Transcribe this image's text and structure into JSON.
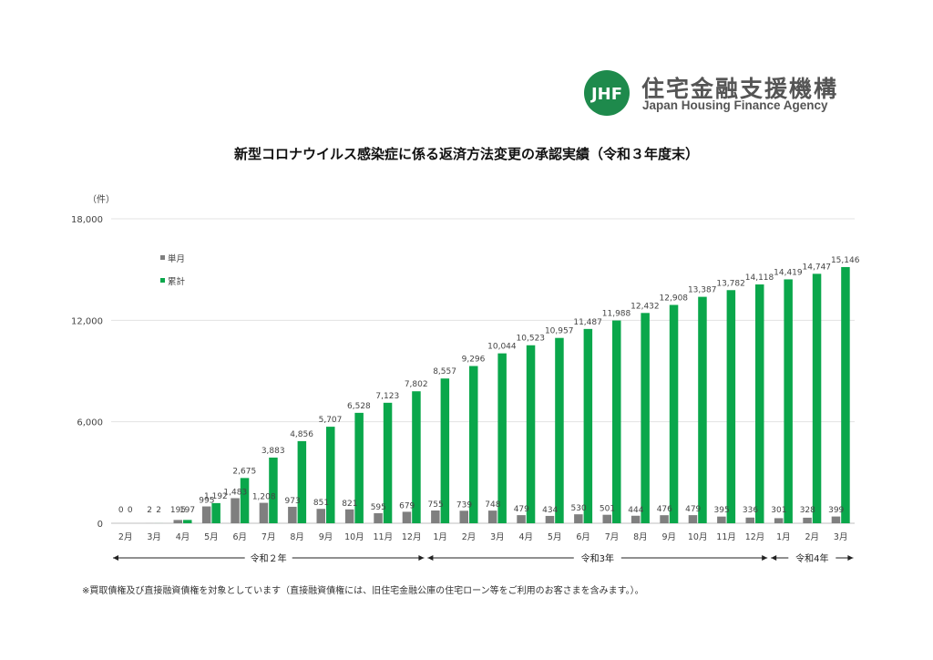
{
  "logo": {
    "mark_text": "JHF",
    "name_jp": "住宅金融支援機構",
    "name_en": "Japan Housing Finance Agency",
    "brand_color": "#1e8a4c"
  },
  "footnote": "※買取債権及び直接融資債権を対象としています（直接融資債権には、旧住宅金融公庫の住宅ローン等をご利用のお客さまを含みます。）。",
  "chart_data": {
    "type": "bar",
    "title": "新型コロナウイルス感染症に係る返済方法変更の承認実績（令和３年度末）",
    "ylabel": "（件）",
    "ylim": [
      0,
      18000
    ],
    "yticks": [
      "0",
      "6,000",
      "12,000",
      "18,000"
    ],
    "grid": true,
    "legend_position": "upper-left",
    "categories": [
      "2月",
      "3月",
      "4月",
      "5月",
      "6月",
      "7月",
      "8月",
      "9月",
      "10月",
      "11月",
      "12月",
      "1月",
      "2月",
      "3月",
      "4月",
      "5月",
      "6月",
      "7月",
      "8月",
      "9月",
      "10月",
      "11月",
      "12月",
      "1月",
      "2月",
      "3月"
    ],
    "series": [
      {
        "name": "単月",
        "color": "#7f7f7f",
        "values": [
          0,
          2,
          195,
          995,
          1483,
          1208,
          973,
          851,
          821,
          595,
          679,
          755,
          739,
          748,
          479,
          434,
          530,
          501,
          444,
          476,
          479,
          395,
          336,
          301,
          328,
          399
        ],
        "labels": [
          "0",
          "2",
          "195",
          "995",
          "1,483",
          "1,208",
          "973",
          "851",
          "821",
          "595",
          "679",
          "755",
          "739",
          "748",
          "479",
          "434",
          "530",
          "501",
          "444",
          "476",
          "479",
          "395",
          "336",
          "301",
          "328",
          "399"
        ]
      },
      {
        "name": "累計",
        "color": "#0aa74b",
        "values": [
          0,
          2,
          197,
          1192,
          2675,
          3883,
          4856,
          5707,
          6528,
          7123,
          7802,
          8557,
          9296,
          10044,
          10523,
          10957,
          11487,
          11988,
          12432,
          12908,
          13387,
          13782,
          14118,
          14419,
          14747,
          15146
        ],
        "labels": [
          "0",
          "2",
          "197",
          "1,192",
          "2,675",
          "3,883",
          "4,856",
          "5,707",
          "6,528",
          "7,123",
          "7,802",
          "8,557",
          "9,296",
          "10,044",
          "10,523",
          "10,957",
          "11,487",
          "11,988",
          "12,432",
          "12,908",
          "13,387",
          "13,782",
          "14,118",
          "14,419",
          "14,747",
          "15,146"
        ]
      }
    ],
    "periods": [
      {
        "label": "令和２年",
        "start": 0,
        "end": 10
      },
      {
        "label": "令和3年",
        "start": 11,
        "end": 22
      },
      {
        "label": "令和4年",
        "start": 23,
        "end": 25
      }
    ]
  }
}
